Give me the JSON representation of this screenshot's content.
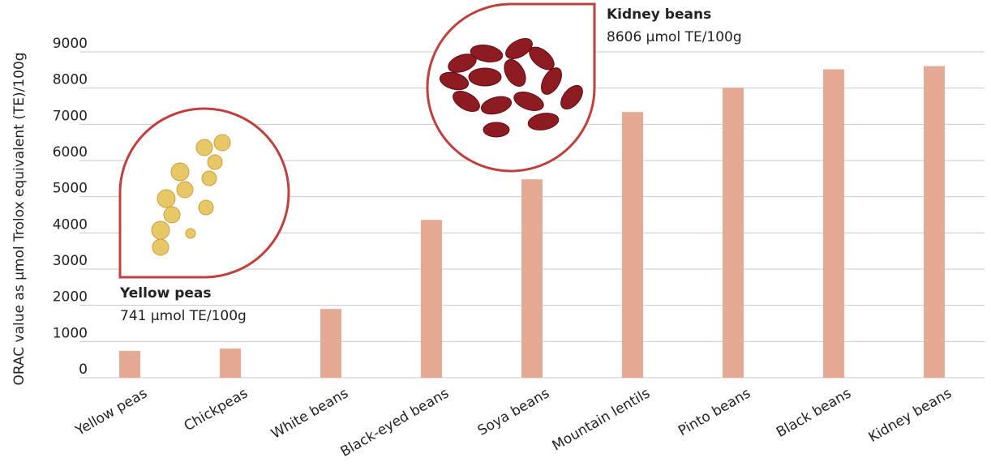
{
  "chart_data": {
    "type": "bar",
    "y_axis_label": "ORAC value as µmol Trolox equivalent (TE)/100g",
    "categories": [
      "Yellow peas",
      "Chickpeas",
      "White beans",
      "Black-eyed beans",
      "Soya beans",
      "Mountain lentils",
      "Pinto beans",
      "Black beans",
      "Kidney beans"
    ],
    "values": [
      741,
      805,
      1900,
      4360,
      5480,
      7340,
      8010,
      8520,
      8606
    ],
    "color": "#e5aa95",
    "ylim": [
      0,
      9000
    ],
    "yticks": [
      0,
      1000,
      2000,
      3000,
      4000,
      5000,
      6000,
      7000,
      8000,
      9000
    ],
    "grid": true,
    "annotations": [
      {
        "title": "Yellow peas",
        "text": "741 µmol TE/100g"
      },
      {
        "title": "Kidney beans",
        "text": "8606 µmol TE/100g"
      }
    ]
  }
}
